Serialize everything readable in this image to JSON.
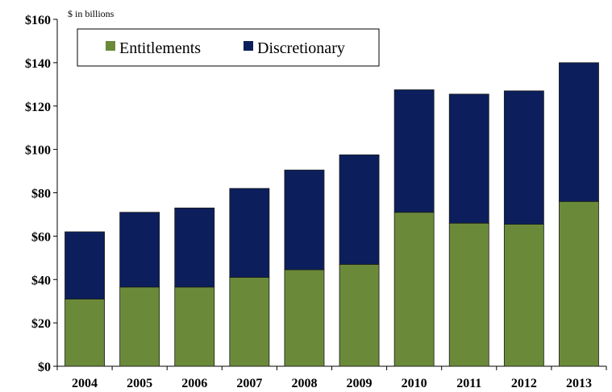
{
  "chart_data": {
    "type": "bar",
    "stacked": true,
    "unit_note": "$ in billions",
    "categories": [
      "2004",
      "2005",
      "2006",
      "2007",
      "2008",
      "2009",
      "2010",
      "2011",
      "2012",
      "2013"
    ],
    "series": [
      {
        "name": "Entitlements",
        "color": "#6a8a3a",
        "values": [
          31,
          36.5,
          36.5,
          41,
          44.5,
          47,
          71,
          66,
          65.5,
          76
        ]
      },
      {
        "name": "Discretionary",
        "color": "#0c1f5c",
        "values": [
          31,
          34.5,
          36.5,
          41,
          46,
          50.5,
          56.5,
          59.5,
          61.5,
          64
        ]
      }
    ],
    "ylim": [
      0,
      160
    ],
    "yticks": [
      0,
      20,
      40,
      60,
      80,
      100,
      120,
      140,
      160
    ],
    "ytick_labels": [
      "$0",
      "$20",
      "$40",
      "$60",
      "$80",
      "$100",
      "$120",
      "$140",
      "$160"
    ],
    "xlabel": "",
    "ylabel": "",
    "grid": false,
    "legend_position": "top-left"
  }
}
